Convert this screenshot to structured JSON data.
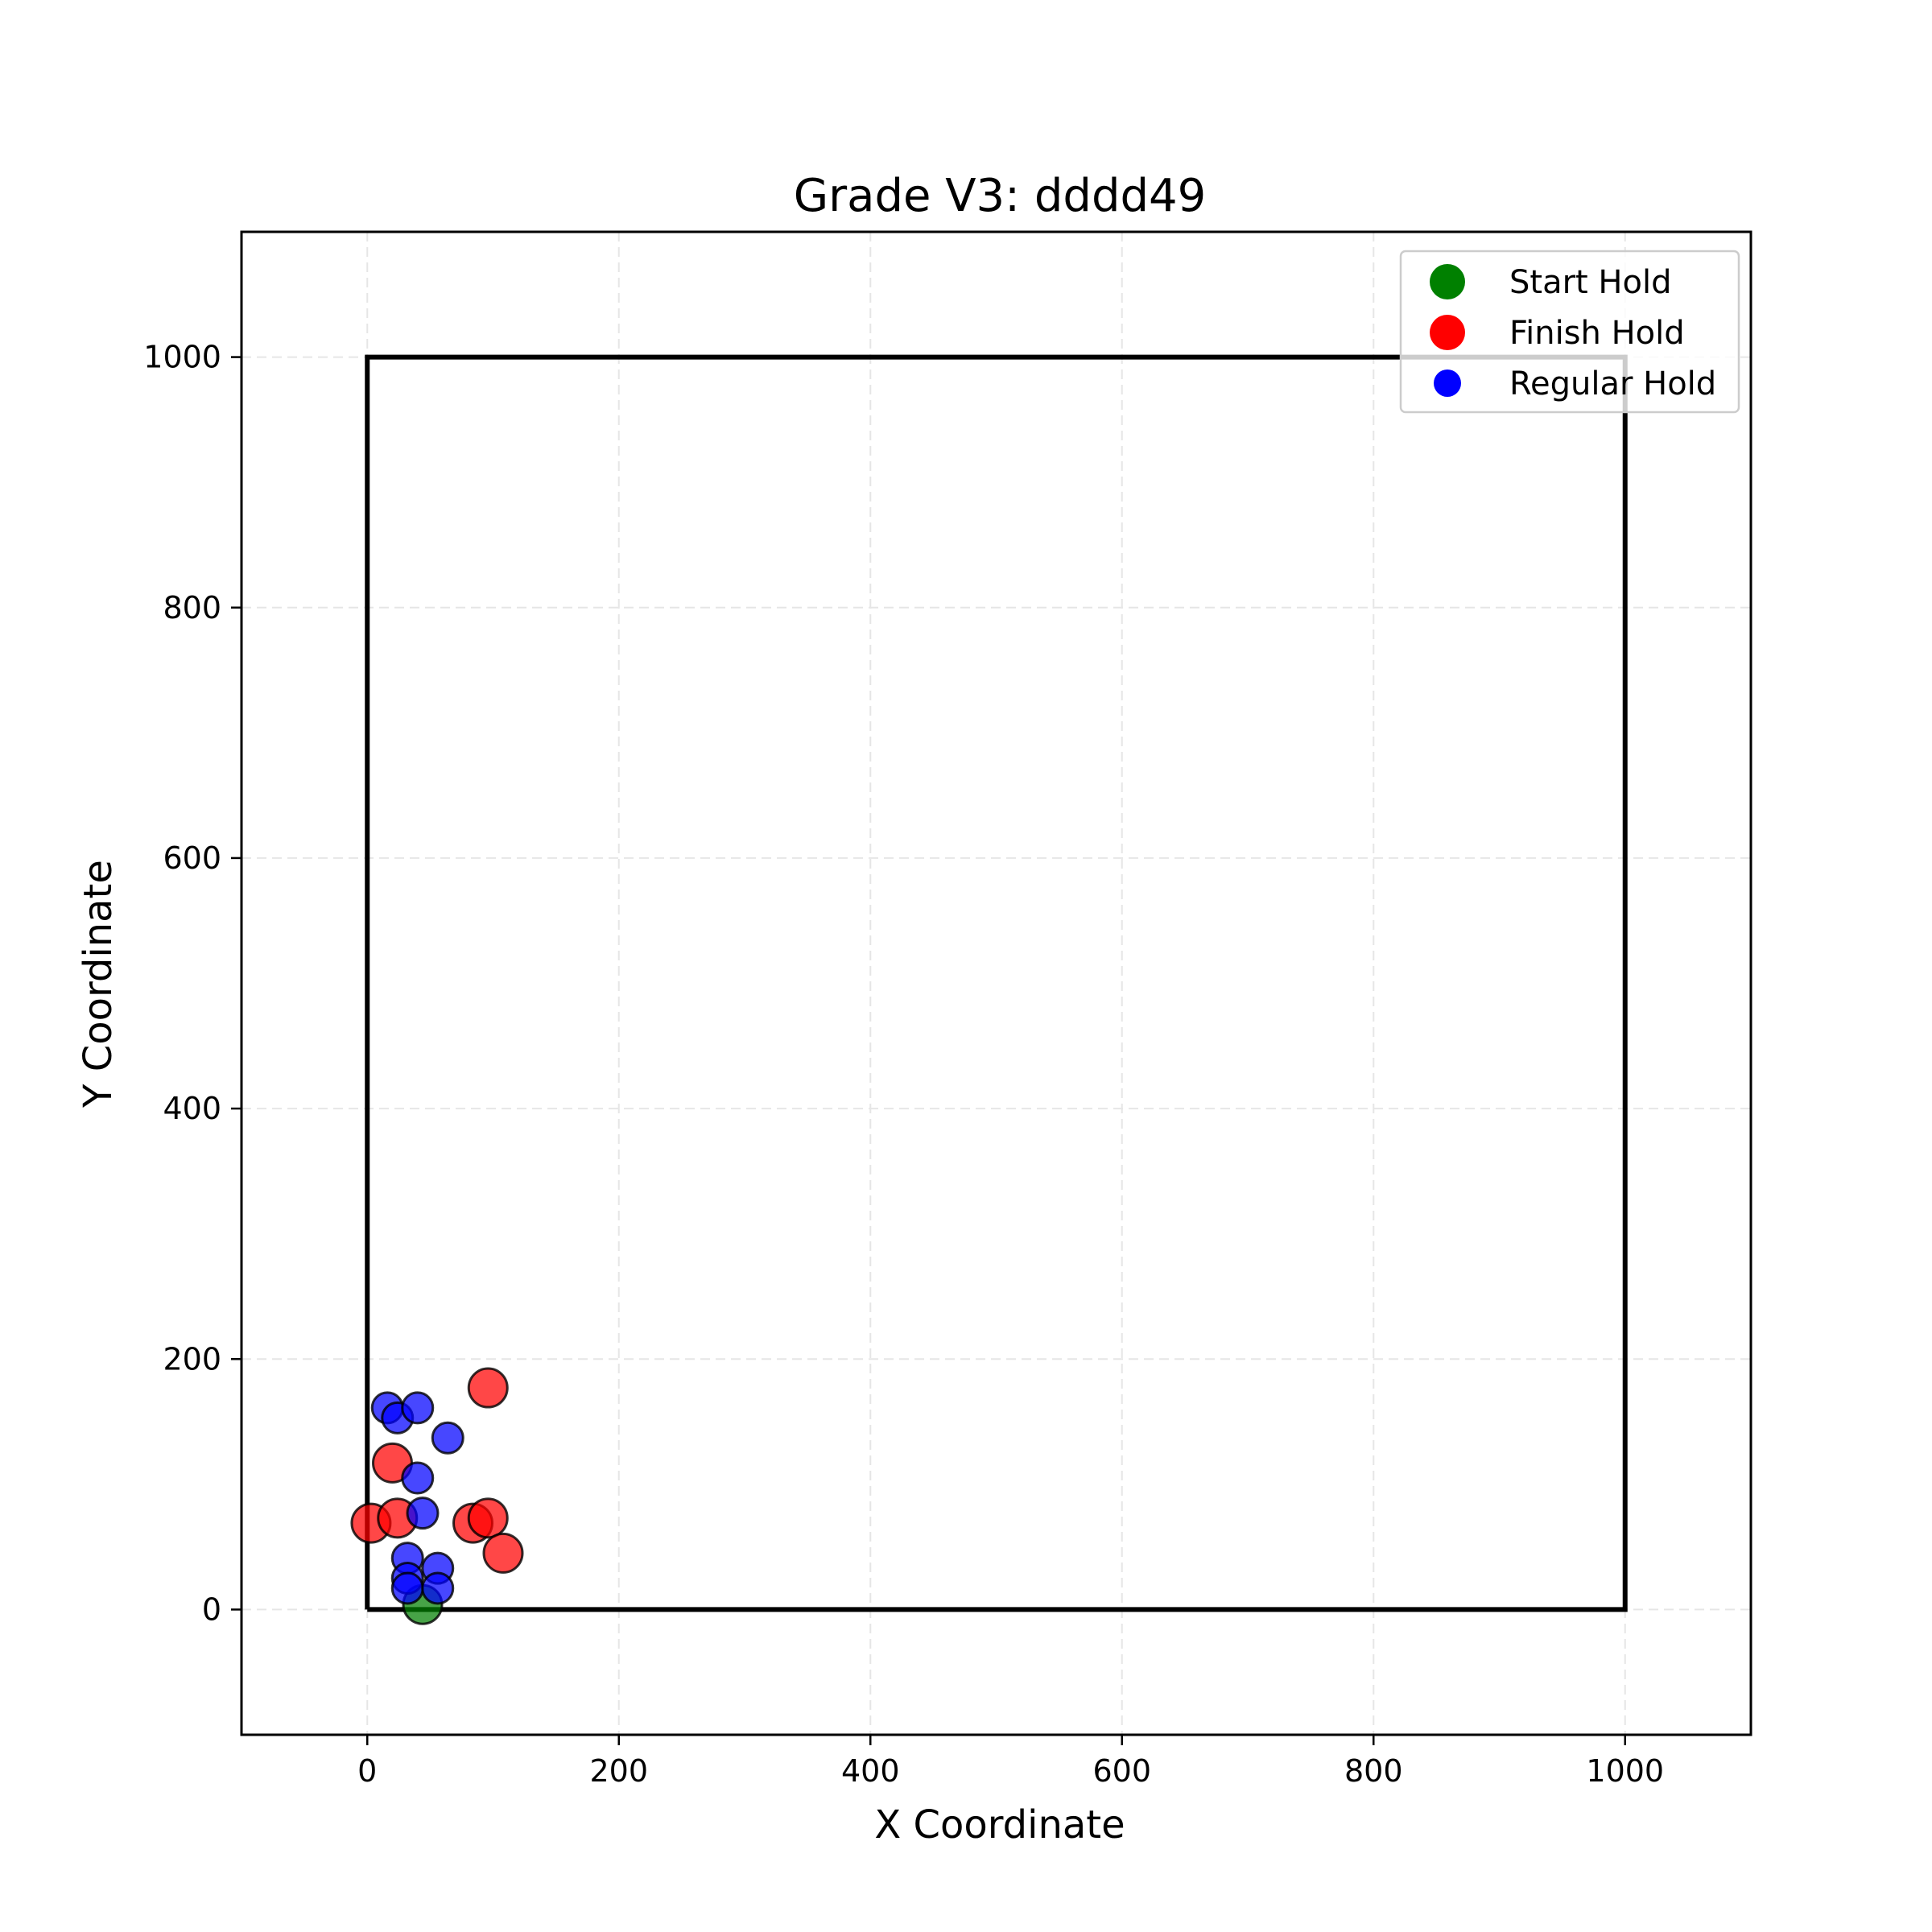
{
  "chart_data": {
    "type": "scatter",
    "title": "Grade V3: dddd49",
    "xlabel": "X Coordinate",
    "ylabel": "Y Coordinate",
    "xlim": [
      -100,
      1100
    ],
    "ylim": [
      -100,
      1100
    ],
    "xticks": [
      0,
      200,
      400,
      600,
      800,
      1000
    ],
    "yticks": [
      0,
      200,
      400,
      600,
      800,
      1000
    ],
    "xtick_labels": [
      "0",
      "200",
      "400",
      "600",
      "800",
      "1000"
    ],
    "ytick_labels": [
      "0",
      "200",
      "400",
      "600",
      "800",
      "1000"
    ],
    "grid": true,
    "legend_position": "top-right",
    "boundary": {
      "x": [
        0,
        1000,
        1000,
        0,
        0
      ],
      "y": [
        0,
        0,
        1000,
        1000,
        0
      ]
    },
    "series": [
      {
        "name": "Start Hold",
        "color": "#008000",
        "points": [
          {
            "x": 44,
            "y": 4
          }
        ]
      },
      {
        "name": "Finish Hold",
        "color": "#ff0000",
        "points": [
          {
            "x": 3,
            "y": 69
          },
          {
            "x": 24,
            "y": 73
          },
          {
            "x": 20,
            "y": 117
          },
          {
            "x": 84,
            "y": 69
          },
          {
            "x": 96,
            "y": 73
          },
          {
            "x": 108,
            "y": 45
          },
          {
            "x": 96,
            "y": 177
          }
        ]
      },
      {
        "name": "Regular Hold",
        "color": "#0000ff",
        "points": [
          {
            "x": 16,
            "y": 161
          },
          {
            "x": 24,
            "y": 153
          },
          {
            "x": 40,
            "y": 161
          },
          {
            "x": 64,
            "y": 137
          },
          {
            "x": 40,
            "y": 105
          },
          {
            "x": 44,
            "y": 77
          },
          {
            "x": 32,
            "y": 41
          },
          {
            "x": 32,
            "y": 25
          },
          {
            "x": 32,
            "y": 17
          },
          {
            "x": 56,
            "y": 33
          },
          {
            "x": 56,
            "y": 17
          }
        ]
      }
    ]
  }
}
